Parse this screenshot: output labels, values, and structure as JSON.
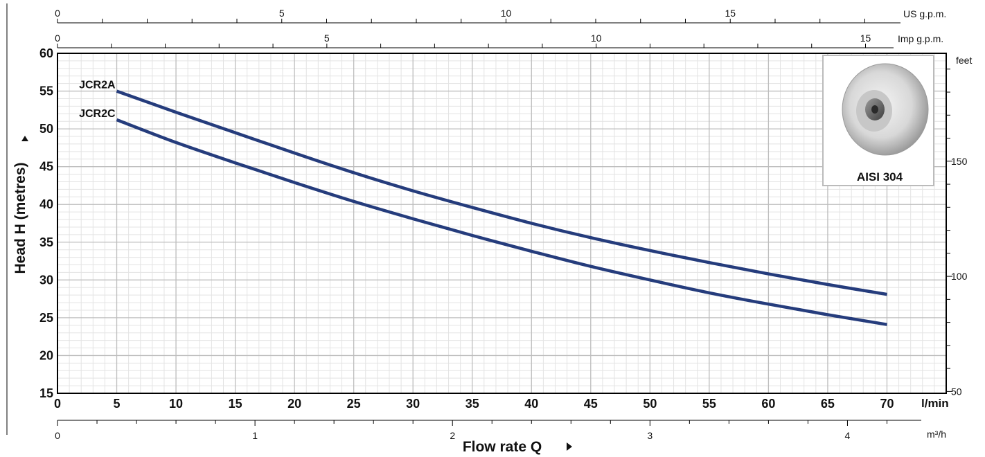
{
  "chart_data": {
    "type": "line",
    "xlabel": "Flow rate Q",
    "ylabel": "Head H (metres)",
    "x_unit": "l/min",
    "x": [
      5,
      10,
      15,
      20,
      25,
      30,
      35,
      40,
      45,
      50,
      55,
      60,
      65,
      70
    ],
    "xlim": [
      0,
      75
    ],
    "ylim": [
      15,
      60
    ],
    "x_ticks": [
      0,
      5,
      10,
      15,
      20,
      25,
      30,
      35,
      40,
      45,
      50,
      55,
      60,
      65,
      70
    ],
    "y_ticks": [
      15,
      20,
      25,
      30,
      35,
      40,
      45,
      50,
      55,
      60
    ],
    "grid": true,
    "series": [
      {
        "name": "JCR2A",
        "color": "#253c7c",
        "values": [
          55.0,
          52.2,
          49.5,
          46.8,
          44.2,
          41.8,
          39.6,
          37.5,
          35.6,
          33.9,
          32.3,
          30.8,
          29.4,
          28.1
        ]
      },
      {
        "name": "JCR2C",
        "color": "#253c7c",
        "values": [
          51.2,
          48.2,
          45.5,
          42.9,
          40.4,
          38.1,
          35.9,
          33.8,
          31.8,
          30.0,
          28.3,
          26.8,
          25.4,
          24.1
        ]
      }
    ],
    "top_axis_us": {
      "unit": "US g.p.m.",
      "ticks": [
        0,
        5,
        10,
        15
      ]
    },
    "top_axis_imp": {
      "unit": "Imp g.p.m.",
      "ticks": [
        0,
        5,
        10,
        15
      ]
    },
    "right_axis": {
      "unit": "feet",
      "ticks": [
        50,
        100,
        150
      ]
    },
    "bottom_axis": {
      "unit": "m³/h",
      "ticks": [
        0,
        1,
        2,
        3,
        4
      ]
    }
  },
  "inset": {
    "label": "AISI 304",
    "icon": "impeller-image"
  }
}
